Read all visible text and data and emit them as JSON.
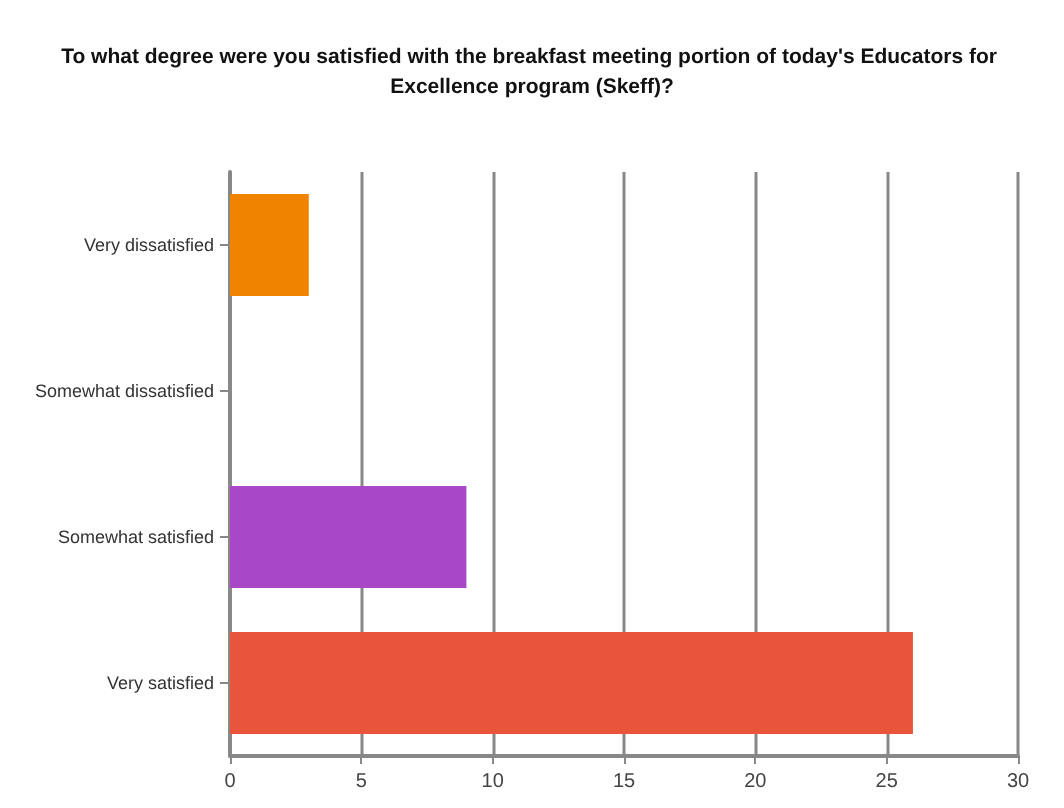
{
  "chart_data": {
    "type": "bar",
    "orientation": "horizontal",
    "title": "To what degree were you satisfied with the breakfast meeting portion of today's Educators for Excellence program (Skeff)?",
    "categories": [
      "Very dissatisfied",
      "Somewhat dissatisfied",
      "Somewhat satisfied",
      "Very satisfied"
    ],
    "values": [
      3,
      0,
      9,
      26
    ],
    "colors": [
      "#f08400",
      "#a848c8",
      "#a848c8",
      "#e8553a"
    ],
    "xlim": [
      0,
      30
    ],
    "xticks": [
      0,
      5,
      10,
      15,
      20,
      25,
      30
    ],
    "grid": "x"
  }
}
